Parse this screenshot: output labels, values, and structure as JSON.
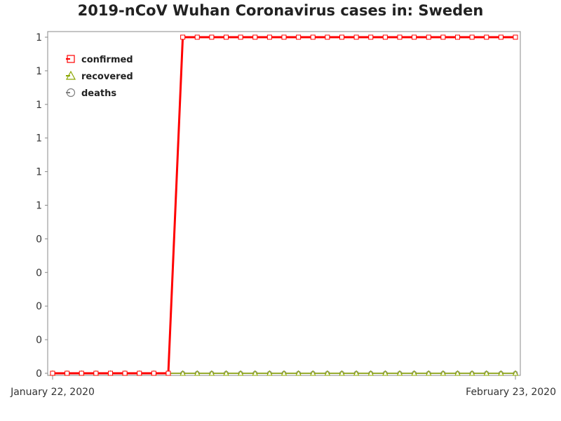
{
  "title": "2019-nCoV Wuhan Coronavirus cases in: Sweden",
  "colors": {
    "confirmed": "#ff0000",
    "recovered": "#8aa600",
    "deaths": "#808080",
    "axis": "#888888"
  },
  "chart_data": {
    "type": "line",
    "title": "2019-nCoV Wuhan Coronavirus cases in: Sweden",
    "xlabel": "",
    "ylabel": "",
    "x": [
      "2020-01-22",
      "2020-01-23",
      "2020-01-24",
      "2020-01-25",
      "2020-01-26",
      "2020-01-27",
      "2020-01-28",
      "2020-01-29",
      "2020-01-30",
      "2020-01-31",
      "2020-02-01",
      "2020-02-02",
      "2020-02-03",
      "2020-02-04",
      "2020-02-05",
      "2020-02-06",
      "2020-02-07",
      "2020-02-08",
      "2020-02-09",
      "2020-02-10",
      "2020-02-11",
      "2020-02-12",
      "2020-02-13",
      "2020-02-14",
      "2020-02-15",
      "2020-02-16",
      "2020-02-17",
      "2020-02-18",
      "2020-02-19",
      "2020-02-20",
      "2020-02-21",
      "2020-02-22",
      "2020-02-23"
    ],
    "x_tick_labels": [
      "January 22, 2020",
      "February 23, 2020"
    ],
    "y_tick_labels": [
      "0",
      "0",
      "0",
      "0",
      "0",
      "1",
      "1",
      "1",
      "1",
      "1",
      "1"
    ],
    "ylim": [
      0,
      1
    ],
    "grid": false,
    "legend_position": "top-left",
    "series": [
      {
        "name": "confirmed",
        "marker": "square",
        "values": [
          0,
          0,
          0,
          0,
          0,
          0,
          0,
          0,
          0,
          1,
          1,
          1,
          1,
          1,
          1,
          1,
          1,
          1,
          1,
          1,
          1,
          1,
          1,
          1,
          1,
          1,
          1,
          1,
          1,
          1,
          1,
          1,
          1
        ]
      },
      {
        "name": "recovered",
        "marker": "triangle",
        "values": [
          0,
          0,
          0,
          0,
          0,
          0,
          0,
          0,
          0,
          0,
          0,
          0,
          0,
          0,
          0,
          0,
          0,
          0,
          0,
          0,
          0,
          0,
          0,
          0,
          0,
          0,
          0,
          0,
          0,
          0,
          0,
          0,
          0
        ]
      },
      {
        "name": "deaths",
        "marker": "circle",
        "values": [
          0,
          0,
          0,
          0,
          0,
          0,
          0,
          0,
          0,
          0,
          0,
          0,
          0,
          0,
          0,
          0,
          0,
          0,
          0,
          0,
          0,
          0,
          0,
          0,
          0,
          0,
          0,
          0,
          0,
          0,
          0,
          0,
          0
        ]
      }
    ]
  }
}
